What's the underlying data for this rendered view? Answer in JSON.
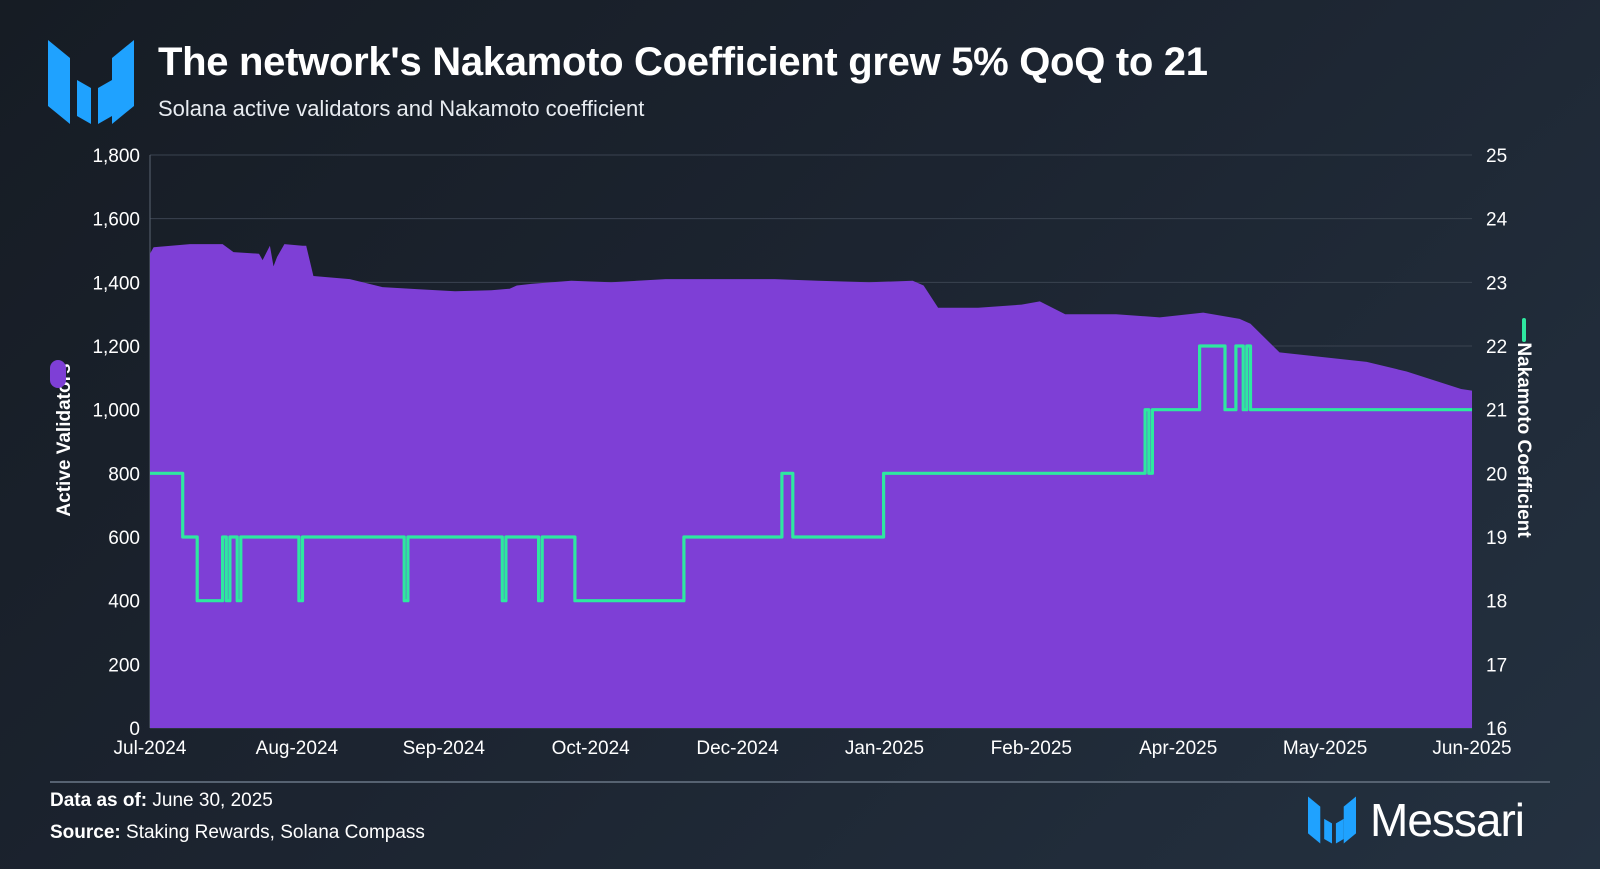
{
  "header": {
    "title": "The network's Nakamoto Coefficient grew 5% QoQ to 21",
    "subtitle": "Solana active validators and Nakamoto coefficient"
  },
  "footer": {
    "data_as_of_label": "Data as of:",
    "data_as_of_value": "June 30, 2025",
    "source_label": "Source:",
    "source_value": "Staking Rewards, Solana Compass",
    "brand": "Messari"
  },
  "colors": {
    "validators": "#7e3fd6",
    "nakamoto": "#2ee8a0",
    "brand_blue": "#1fa2ff",
    "grid": "#3a4350",
    "axis_text": "#ffffff"
  },
  "chart_data": {
    "type": "area",
    "title": "The network's Nakamoto Coefficient grew 5% QoQ to 21",
    "subtitle": "Solana active validators and Nakamoto coefficient",
    "x_tick_labels": [
      "Jul-2024",
      "Aug-2024",
      "Sep-2024",
      "Oct-2024",
      "Dec-2024",
      "Jan-2025",
      "Feb-2025",
      "Apr-2025",
      "May-2025",
      "Jun-2025"
    ],
    "x_range": [
      "2024-07-01",
      "2025-06-30"
    ],
    "y_left": {
      "label": "Active Validators",
      "ticks": [
        "0",
        "200",
        "400",
        "600",
        "800",
        "1,000",
        "1,200",
        "1,400",
        "1,600",
        "1,800"
      ],
      "ylim": [
        0,
        1800
      ]
    },
    "y_right": {
      "label": "Nakamoto Coefficient",
      "ticks": [
        "16",
        "17",
        "18",
        "19",
        "20",
        "21",
        "22",
        "23",
        "24",
        "25"
      ],
      "ylim": [
        16,
        25
      ]
    },
    "grid": true,
    "series": [
      {
        "name": "Active Validators",
        "type": "area",
        "axis": "left",
        "x": [
          "2024-07-01",
          "2024-07-02",
          "2024-07-12",
          "2024-07-21",
          "2024-07-24",
          "2024-07-31",
          "2024-08-01",
          "2024-08-03",
          "2024-08-04",
          "2024-08-05",
          "2024-08-07",
          "2024-08-12",
          "2024-08-13",
          "2024-08-15",
          "2024-08-25",
          "2024-09-03",
          "2024-09-13",
          "2024-09-23",
          "2024-10-03",
          "2024-10-08",
          "2024-10-10",
          "2024-10-14",
          "2024-10-25",
          "2024-11-05",
          "2024-11-20",
          "2024-12-06",
          "2024-12-20",
          "2025-01-01",
          "2025-01-15",
          "2025-01-27",
          "2025-01-30",
          "2025-02-03",
          "2025-02-14",
          "2025-02-26",
          "2025-03-03",
          "2025-03-10",
          "2025-03-24",
          "2025-04-05",
          "2025-04-17",
          "2025-04-27",
          "2025-04-30",
          "2025-05-08",
          "2025-05-20",
          "2025-06-01",
          "2025-06-12",
          "2025-06-27",
          "2025-06-30"
        ],
        "values": [
          1490,
          1510,
          1520,
          1520,
          1495,
          1490,
          1470,
          1515,
          1450,
          1480,
          1520,
          1515,
          1515,
          1420,
          1410,
          1385,
          1378,
          1372,
          1375,
          1380,
          1390,
          1395,
          1405,
          1400,
          1410,
          1410,
          1410,
          1405,
          1400,
          1405,
          1390,
          1320,
          1320,
          1330,
          1340,
          1300,
          1300,
          1290,
          1305,
          1285,
          1270,
          1180,
          1165,
          1150,
          1120,
          1065,
          1060
        ]
      },
      {
        "name": "Nakamoto Coefficient",
        "type": "step-line",
        "axis": "right",
        "x": [
          "2024-07-01",
          "2024-07-10",
          "2024-07-14",
          "2024-07-20",
          "2024-07-21",
          "2024-07-22",
          "2024-07-23",
          "2024-07-24",
          "2024-07-25",
          "2024-07-26",
          "2024-07-27",
          "2024-07-28",
          "2024-08-10",
          "2024-08-11",
          "2024-08-12",
          "2024-09-08",
          "2024-09-09",
          "2024-09-10",
          "2024-10-05",
          "2024-10-06",
          "2024-10-07",
          "2024-10-15",
          "2024-10-16",
          "2024-10-17",
          "2024-10-25",
          "2024-10-26",
          "2024-11-24",
          "2024-11-25",
          "2024-12-21",
          "2024-12-22",
          "2024-12-24",
          "2024-12-25",
          "2025-01-18",
          "2025-01-19",
          "2025-03-31",
          "2025-04-01",
          "2025-04-02",
          "2025-04-03",
          "2025-04-04",
          "2025-04-15",
          "2025-04-16",
          "2025-04-22",
          "2025-04-23",
          "2025-04-25",
          "2025-04-26",
          "2025-04-27",
          "2025-04-28",
          "2025-04-29",
          "2025-04-30",
          "2025-06-30"
        ],
        "values": [
          20,
          19,
          18,
          18,
          19,
          18,
          19,
          19,
          18,
          19,
          19,
          19,
          19,
          18,
          19,
          19,
          18,
          19,
          19,
          18,
          19,
          19,
          18,
          19,
          19,
          18,
          18,
          19,
          19,
          20,
          20,
          19,
          19,
          20,
          20,
          21,
          20,
          21,
          21,
          21,
          22,
          22,
          21,
          21,
          22,
          22,
          21,
          22,
          21,
          21
        ]
      }
    ]
  }
}
